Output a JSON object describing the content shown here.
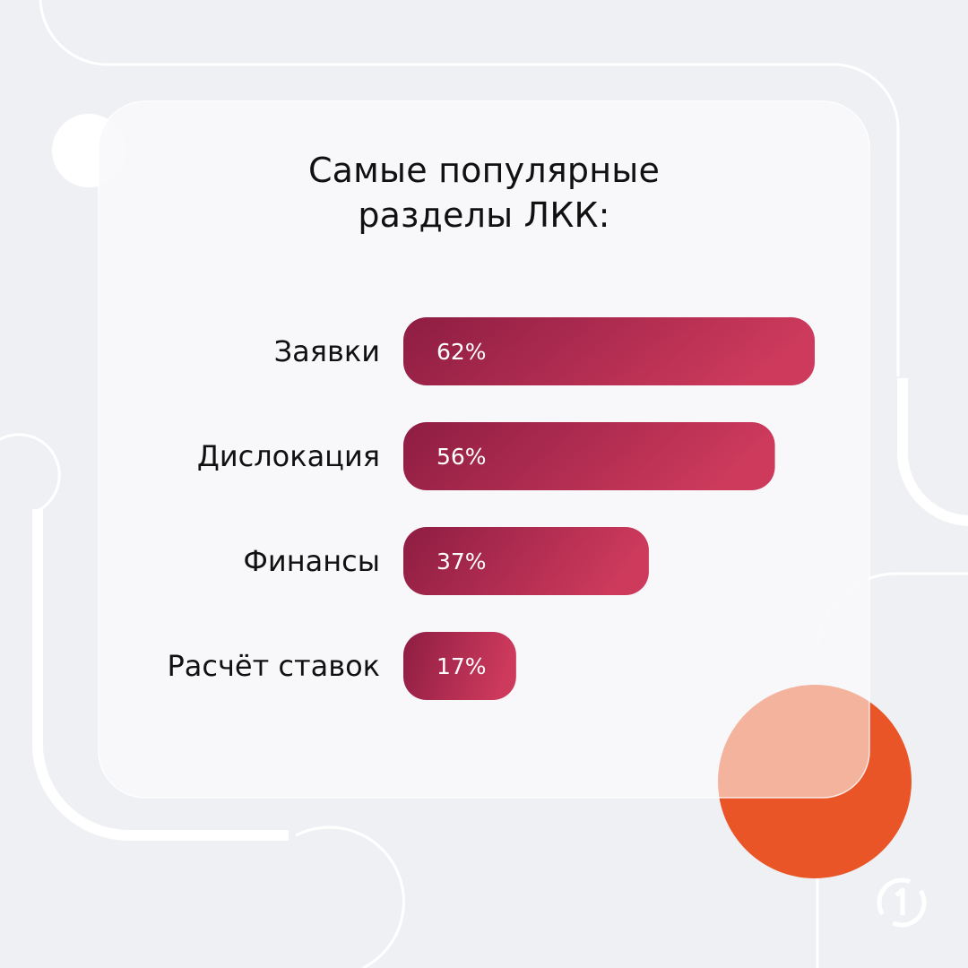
{
  "title": {
    "line1": "Самые популярные",
    "line2": "разделы ЛКК:"
  },
  "colors": {
    "bar_start": "#8e1d43",
    "bar_end": "#cd3a5c",
    "accent_orange": "#ea5527",
    "accent_peach": "#f4b39c",
    "background": "#eff0f4",
    "card": "#f9f9fb",
    "decor_line": "#ffffff"
  },
  "chart_data": {
    "type": "bar",
    "orientation": "horizontal",
    "title": "Самые популярные разделы ЛКК:",
    "categories": [
      "Заявки",
      "Дислокация",
      "Финансы",
      "Расчёт ставок"
    ],
    "values": [
      62,
      56,
      37,
      17
    ],
    "value_labels": [
      "62%",
      "56%",
      "37%",
      "17%"
    ],
    "unit": "%",
    "xlim": [
      0,
      62
    ],
    "grid": false,
    "xlabel": "",
    "ylabel": ""
  },
  "logo": {
    "icon": "brand-logo-icon"
  }
}
